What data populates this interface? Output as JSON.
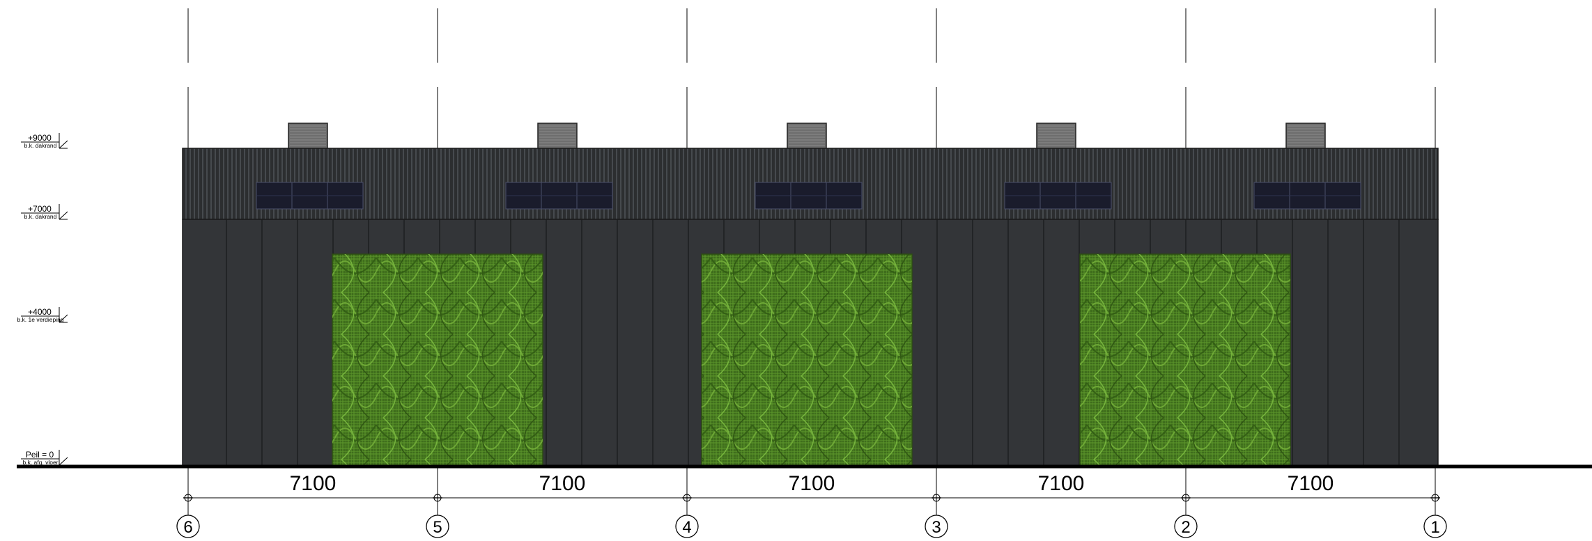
{
  "drawing": {
    "type": "facade-elevation",
    "colors": {
      "background": "#ffffff",
      "roof_band": "#2c2e30",
      "roof_ribs": "#4d5155",
      "wall": "#333538",
      "wall_joints": "#1c1d1f",
      "solar_panel": "#1a1c2c",
      "roof_box": "#6e6e6e",
      "green_facade": "#3f6e1c",
      "green_mesh": "#67a232",
      "ground_line": "#000000"
    },
    "levels": [
      {
        "value": "+9000",
        "label": "b.k. dakrand"
      },
      {
        "value": "+7000",
        "label": "b.k. dakrand"
      },
      {
        "value": "+4000",
        "label": "b.k. 1e verdieping"
      },
      {
        "value": "Peil = 0",
        "label": "b.k. afg. vloer"
      }
    ],
    "dimensions": [
      "7100",
      "7100",
      "7100",
      "7100",
      "7100"
    ],
    "axes": [
      "6",
      "5",
      "4",
      "3",
      "2",
      "1"
    ],
    "solar_panel_groups": 5,
    "roof_boxes": 5,
    "green_panels": 3
  }
}
